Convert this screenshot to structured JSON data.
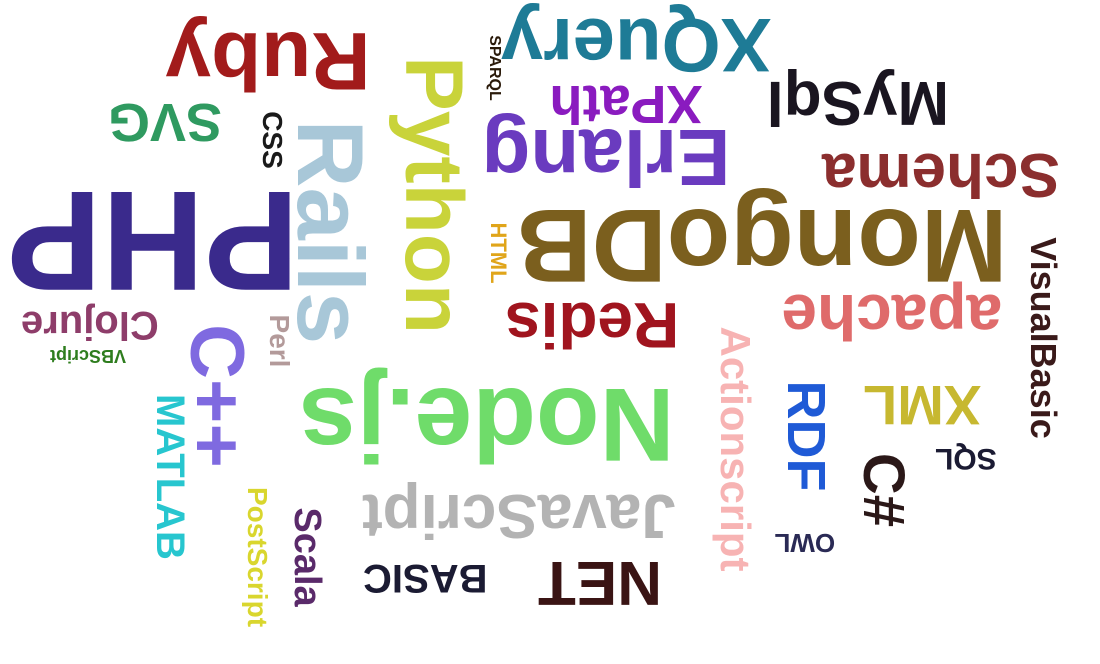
{
  "words": [
    {
      "id": "php",
      "text": "PHP",
      "color": "#3a2a8c"
    },
    {
      "id": "nodejs",
      "text": "Node.js",
      "color": "#6fdc6a"
    },
    {
      "id": "mongodb",
      "text": "MongoDB",
      "color": "#7b5f1e"
    },
    {
      "id": "python",
      "text": "Python",
      "color": "#c9d33a"
    },
    {
      "id": "rails",
      "text": "Rails",
      "color": "#a8c7d8"
    },
    {
      "id": "ruby",
      "text": "Ruby",
      "color": "#a21b1b"
    },
    {
      "id": "xquery",
      "text": "XQuery",
      "color": "#1e7b96"
    },
    {
      "id": "erlang",
      "text": "Erlang",
      "color": "#6a3bbf"
    },
    {
      "id": "mysql",
      "text": "MySql",
      "color": "#1a1520"
    },
    {
      "id": "schema",
      "text": "Schema",
      "color": "#8b2e2e"
    },
    {
      "id": "redis",
      "text": "Redis",
      "color": "#a0141e"
    },
    {
      "id": "apache",
      "text": "apache",
      "color": "#df6b6b"
    },
    {
      "id": "javascript",
      "text": "JavaScript",
      "color": "#b3b3b3"
    },
    {
      "id": "net",
      "text": "NET",
      "color": "#3a1414"
    },
    {
      "id": "cpp",
      "text": "C++",
      "color": "#7f6ae0"
    },
    {
      "id": "svg",
      "text": "SVG",
      "color": "#2f9a60"
    },
    {
      "id": "xpath",
      "text": "XPath",
      "color": "#8a1bbf"
    },
    {
      "id": "xml",
      "text": "XML",
      "color": "#c7b830"
    },
    {
      "id": "csharp",
      "text": "C#",
      "color": "#2b1818"
    },
    {
      "id": "rdf",
      "text": "RDF",
      "color": "#1f5ad6"
    },
    {
      "id": "actionscript",
      "text": "Actionscript",
      "color": "#f7b3b3"
    },
    {
      "id": "clojure",
      "text": "Clojure",
      "color": "#8e3d6a"
    },
    {
      "id": "matlab",
      "text": "MATLAB",
      "color": "#27c6cf"
    },
    {
      "id": "basic",
      "text": "BASIC",
      "color": "#1b1b33"
    },
    {
      "id": "visualbasic",
      "text": "VisualBasic",
      "color": "#3a1a1a"
    },
    {
      "id": "scala",
      "text": "Scala",
      "color": "#5a2a6a"
    },
    {
      "id": "postscript",
      "text": "PostScript",
      "color": "#d9d62e"
    },
    {
      "id": "sql",
      "text": "SQL",
      "color": "#1b1b33"
    },
    {
      "id": "owl",
      "text": "OWL",
      "color": "#2a2a55"
    },
    {
      "id": "css",
      "text": "CSS",
      "color": "#1a1a1a"
    },
    {
      "id": "perl",
      "text": "Perl",
      "color": "#b39a9a"
    },
    {
      "id": "html",
      "text": "HTML",
      "color": "#e0a51a"
    },
    {
      "id": "sparql",
      "text": "SPARQL",
      "color": "#2a1a0a"
    },
    {
      "id": "vbscript",
      "text": "VBScript",
      "color": "#2e7d1e"
    }
  ]
}
